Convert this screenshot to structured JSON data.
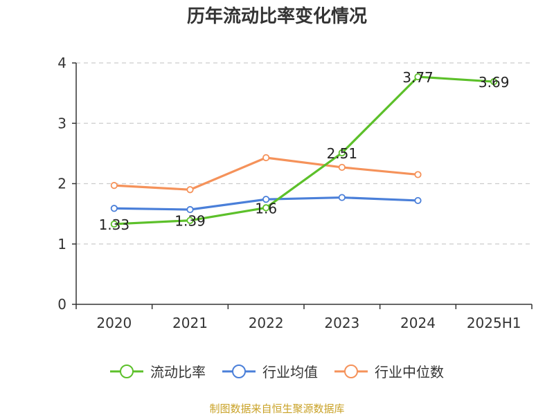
{
  "chart_data": {
    "type": "line",
    "title": "历年流动比率变化情况",
    "xlabel": "",
    "ylabel": "",
    "categories": [
      "2020",
      "2021",
      "2022",
      "2023",
      "2024",
      "2025H1"
    ],
    "y_ticks": [
      "0",
      "1",
      "2",
      "3",
      "4"
    ],
    "ylim": [
      0,
      4
    ],
    "grid": true,
    "legend_position": "bottom",
    "series": [
      {
        "name": "流动比率",
        "color": "#5cc02a",
        "values": [
          1.33,
          1.39,
          1.6,
          2.51,
          3.77,
          3.69
        ],
        "labels": [
          "1.33",
          "1.39",
          "1.6",
          "2.51",
          "3.77",
          "3.69"
        ]
      },
      {
        "name": "行业均值",
        "color": "#4a7fd9",
        "values": [
          1.59,
          1.57,
          1.74,
          1.77,
          1.72,
          null
        ]
      },
      {
        "name": "行业中位数",
        "color": "#f5925a",
        "values": [
          1.97,
          1.9,
          2.43,
          2.27,
          2.15,
          null
        ]
      }
    ],
    "source": "制图数据来自恒生聚源数据库"
  }
}
